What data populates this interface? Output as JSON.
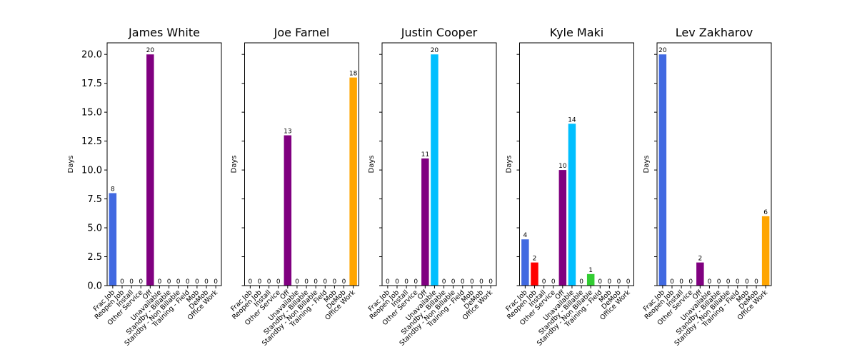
{
  "chart_data": [
    {
      "type": "bar",
      "title": "James White",
      "ylabel": "Days",
      "ylim": [
        0,
        21
      ],
      "yticks": [
        "0.0",
        "2.5",
        "5.0",
        "7.5",
        "10.0",
        "12.5",
        "15.0",
        "17.5",
        "20.0"
      ],
      "categories": [
        "Frac Job",
        "Reopen Job",
        "Install",
        "Other Service",
        "Off",
        "Unavailable",
        "Standby - Billable",
        "Standby - Non Billable",
        "Training - Field",
        "Mob",
        "DeMob",
        "Office Work"
      ],
      "values": [
        8,
        0,
        0,
        0,
        20,
        0,
        0,
        0,
        0,
        0,
        0,
        0
      ]
    },
    {
      "type": "bar",
      "title": "Joe Farnel",
      "ylabel": "Days",
      "ylim": [
        0,
        21
      ],
      "categories": [
        "Frac Job",
        "Reopen Job",
        "Install",
        "Other Service",
        "Off",
        "Unavailable",
        "Standby - Billable",
        "Standby - Non Billable",
        "Training - Field",
        "Mob",
        "DeMob",
        "Office Work"
      ],
      "values": [
        0,
        0,
        0,
        0,
        13,
        0,
        0,
        0,
        0,
        0,
        0,
        18
      ]
    },
    {
      "type": "bar",
      "title": "Justin Cooper",
      "ylabel": "Days",
      "ylim": [
        0,
        21
      ],
      "categories": [
        "Frac Job",
        "Reopen Job",
        "Install",
        "Other Service",
        "Off",
        "Unavailable",
        "Standby - Billable",
        "Standby - Non Billable",
        "Training - Field",
        "Mob",
        "DeMob",
        "Office Work"
      ],
      "values": [
        0,
        0,
        0,
        0,
        11,
        20,
        0,
        0,
        0,
        0,
        0,
        0
      ]
    },
    {
      "type": "bar",
      "title": "Kyle Maki",
      "ylabel": "Days",
      "ylim": [
        0,
        21
      ],
      "categories": [
        "Frac Job",
        "Reopen Job",
        "Install",
        "Other Service",
        "Off",
        "Unavailable",
        "Standby - Billable",
        "Standby - Non Billable",
        "Training - Field",
        "Mob",
        "DeMob",
        "Office Work"
      ],
      "values": [
        4,
        2,
        0,
        0,
        10,
        14,
        0,
        1,
        0,
        0,
        0,
        0
      ]
    },
    {
      "type": "bar",
      "title": "Lev Zakharov",
      "ylabel": "Days",
      "ylim": [
        0,
        21
      ],
      "categories": [
        "Frac Job",
        "Reopen Job",
        "Install",
        "Other Service",
        "Off",
        "Unavailable",
        "Standby - Billable",
        "Standby - Non Billable",
        "Training - Field",
        "Mob",
        "DeMob",
        "Office Work"
      ],
      "values": [
        20,
        0,
        0,
        0,
        2,
        0,
        0,
        0,
        0,
        0,
        0,
        6
      ]
    }
  ],
  "colors": [
    "#4169e1",
    "#ff0000",
    "#228b22",
    "#8b4513",
    "#800080",
    "#00bfff",
    "#ffc0cb",
    "#32cd32",
    "#ff69b4",
    "#808080",
    "#000080",
    "#ffa500"
  ]
}
